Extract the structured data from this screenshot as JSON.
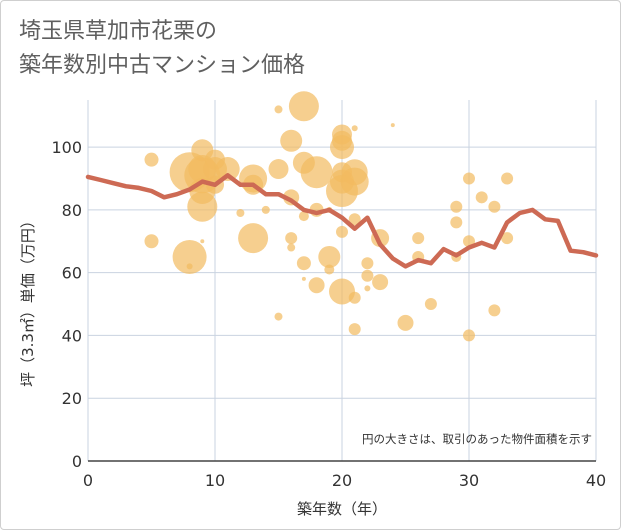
{
  "title_line1": "埼玉県草加市花栗の",
  "title_line2": "築年数別中古マンション価格",
  "chart_data": {
    "type": "scatter",
    "xlabel": "築年数（年）",
    "ylabel": "坪（3.3㎡）単価（万円）",
    "xlim": [
      0,
      40
    ],
    "ylim": [
      0,
      115
    ],
    "xticks": [
      0,
      10,
      20,
      30,
      40
    ],
    "yticks": [
      0,
      20,
      40,
      60,
      80,
      100
    ],
    "grid": true,
    "note": "円の大きさは、取引のあった物件面積を示す",
    "bubble_color": "#f2bb5f",
    "line_color": "#cd6a54",
    "bubbles": [
      {
        "x": 5,
        "y": 96,
        "s": 7
      },
      {
        "x": 5,
        "y": 70,
        "s": 7
      },
      {
        "x": 8,
        "y": 92,
        "s": 20
      },
      {
        "x": 8,
        "y": 65,
        "s": 17
      },
      {
        "x": 8,
        "y": 62,
        "s": 3
      },
      {
        "x": 9,
        "y": 99,
        "s": 11
      },
      {
        "x": 9,
        "y": 93,
        "s": 14
      },
      {
        "x": 9,
        "y": 91,
        "s": 18
      },
      {
        "x": 9,
        "y": 86,
        "s": 13
      },
      {
        "x": 9,
        "y": 81,
        "s": 15
      },
      {
        "x": 9,
        "y": 70,
        "s": 2
      },
      {
        "x": 10,
        "y": 96,
        "s": 10
      },
      {
        "x": 10,
        "y": 93,
        "s": 12
      },
      {
        "x": 10,
        "y": 88,
        "s": 9
      },
      {
        "x": 11,
        "y": 93,
        "s": 12
      },
      {
        "x": 12,
        "y": 79,
        "s": 4
      },
      {
        "x": 13,
        "y": 90,
        "s": 14
      },
      {
        "x": 13,
        "y": 88,
        "s": 10
      },
      {
        "x": 13,
        "y": 71,
        "s": 15
      },
      {
        "x": 14,
        "y": 80,
        "s": 4
      },
      {
        "x": 15,
        "y": 112,
        "s": 4
      },
      {
        "x": 15,
        "y": 93,
        "s": 10
      },
      {
        "x": 15,
        "y": 46,
        "s": 4
      },
      {
        "x": 16,
        "y": 102,
        "s": 11
      },
      {
        "x": 16,
        "y": 84,
        "s": 8
      },
      {
        "x": 16,
        "y": 71,
        "s": 6
      },
      {
        "x": 16,
        "y": 68,
        "s": 4
      },
      {
        "x": 17,
        "y": 113,
        "s": 15
      },
      {
        "x": 17,
        "y": 95,
        "s": 11
      },
      {
        "x": 17,
        "y": 78,
        "s": 5
      },
      {
        "x": 17,
        "y": 63,
        "s": 7
      },
      {
        "x": 17,
        "y": 58,
        "s": 2
      },
      {
        "x": 18,
        "y": 92,
        "s": 16
      },
      {
        "x": 18,
        "y": 80,
        "s": 7
      },
      {
        "x": 18,
        "y": 56,
        "s": 8
      },
      {
        "x": 19,
        "y": 65,
        "s": 11
      },
      {
        "x": 19,
        "y": 61,
        "s": 5
      },
      {
        "x": 19,
        "y": 80,
        "s": 3
      },
      {
        "x": 20,
        "y": 104,
        "s": 10
      },
      {
        "x": 20,
        "y": 102,
        "s": 10
      },
      {
        "x": 20,
        "y": 100,
        "s": 12
      },
      {
        "x": 20,
        "y": 92,
        "s": 10
      },
      {
        "x": 20,
        "y": 89,
        "s": 12
      },
      {
        "x": 20,
        "y": 86,
        "s": 16
      },
      {
        "x": 20,
        "y": 73,
        "s": 6
      },
      {
        "x": 20,
        "y": 54,
        "s": 13
      },
      {
        "x": 21,
        "y": 106,
        "s": 3
      },
      {
        "x": 21,
        "y": 92,
        "s": 13
      },
      {
        "x": 21,
        "y": 89,
        "s": 14
      },
      {
        "x": 21,
        "y": 77,
        "s": 6
      },
      {
        "x": 21,
        "y": 52,
        "s": 6
      },
      {
        "x": 21,
        "y": 42,
        "s": 6
      },
      {
        "x": 22,
        "y": 63,
        "s": 6
      },
      {
        "x": 22,
        "y": 59,
        "s": 6
      },
      {
        "x": 22,
        "y": 55,
        "s": 3
      },
      {
        "x": 23,
        "y": 71,
        "s": 9
      },
      {
        "x": 23,
        "y": 57,
        "s": 8
      },
      {
        "x": 24,
        "y": 107,
        "s": 2
      },
      {
        "x": 25,
        "y": 44,
        "s": 8
      },
      {
        "x": 26,
        "y": 71,
        "s": 6
      },
      {
        "x": 26,
        "y": 65,
        "s": 6
      },
      {
        "x": 27,
        "y": 50,
        "s": 6
      },
      {
        "x": 29,
        "y": 81,
        "s": 6
      },
      {
        "x": 29,
        "y": 76,
        "s": 6
      },
      {
        "x": 29,
        "y": 65,
        "s": 5
      },
      {
        "x": 30,
        "y": 90,
        "s": 6
      },
      {
        "x": 30,
        "y": 70,
        "s": 6
      },
      {
        "x": 30,
        "y": 40,
        "s": 6
      },
      {
        "x": 31,
        "y": 84,
        "s": 6
      },
      {
        "x": 32,
        "y": 81,
        "s": 6
      },
      {
        "x": 32,
        "y": 48,
        "s": 6
      },
      {
        "x": 33,
        "y": 90,
        "s": 6
      },
      {
        "x": 33,
        "y": 71,
        "s": 6
      }
    ],
    "series": [
      {
        "x": [
          0,
          1,
          2,
          3,
          4,
          5,
          6,
          7,
          8,
          9,
          10,
          11,
          12,
          13,
          14,
          15,
          16,
          17,
          18,
          19,
          20,
          21,
          22,
          23,
          24,
          25,
          26,
          27,
          28,
          29,
          30,
          31,
          32,
          33,
          34,
          35,
          36,
          37,
          38,
          39,
          40
        ],
        "values": [
          90.5,
          89.5,
          88.5,
          87.5,
          87,
          86,
          84,
          85,
          86.5,
          89,
          88,
          91,
          88,
          88,
          85,
          85,
          83,
          80,
          79,
          80,
          77.5,
          74,
          77.5,
          69,
          64.5,
          62,
          64,
          63,
          67.5,
          65.5,
          68,
          69.5,
          68,
          76,
          79,
          80,
          77,
          76.5,
          67,
          66.5,
          65.5
        ]
      }
    ]
  }
}
